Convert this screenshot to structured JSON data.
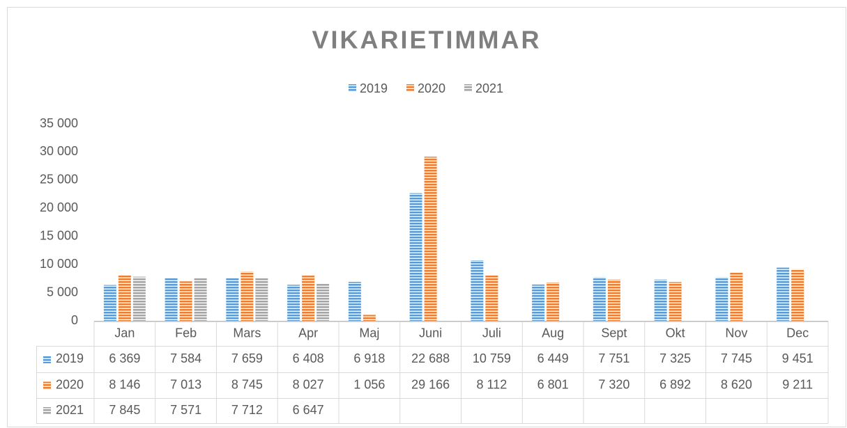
{
  "chart_data": {
    "type": "bar",
    "title": "VIKARIETIMMAR",
    "categories": [
      "Jan",
      "Feb",
      "Mars",
      "Apr",
      "Maj",
      "Juni",
      "Juli",
      "Aug",
      "Sept",
      "Okt",
      "Nov",
      "Dec"
    ],
    "series": [
      {
        "name": "2019",
        "color": "#5b9bd5",
        "values": [
          6369,
          7584,
          7659,
          6408,
          6918,
          22688,
          10759,
          6449,
          7751,
          7325,
          7745,
          9451
        ],
        "value_labels": [
          "6 369",
          "7 584",
          "7 659",
          "6 408",
          "6 918",
          "22 688",
          "10 759",
          "6 449",
          "7 751",
          "7 325",
          "7 745",
          "9 451"
        ]
      },
      {
        "name": "2020",
        "color": "#ed7d31",
        "values": [
          8146,
          7013,
          8745,
          8027,
          1056,
          29166,
          8112,
          6801,
          7320,
          6892,
          8620,
          9211
        ],
        "value_labels": [
          "8 146",
          "7 013",
          "8 745",
          "8 027",
          "1 056",
          "29 166",
          "8 112",
          "6 801",
          "7 320",
          "6 892",
          "8 620",
          "9 211"
        ]
      },
      {
        "name": "2021",
        "color": "#a5a5a5",
        "values": [
          7845,
          7571,
          7712,
          6647,
          null,
          null,
          null,
          null,
          null,
          null,
          null,
          null
        ],
        "value_labels": [
          "7 845",
          "7 571",
          "7 712",
          "6 647",
          null,
          null,
          null,
          null,
          null,
          null,
          null,
          null
        ]
      }
    ],
    "ylim": [
      0,
      35000
    ],
    "yticks": [
      0,
      {
        "value": 5000,
        "label": "5 000"
      },
      {
        "value": 10000,
        "label": "10 000"
      },
      {
        "value": 15000,
        "label": "15 000"
      },
      {
        "value": 20000,
        "label": "20 000"
      },
      {
        "value": 25000,
        "label": "25 000"
      },
      {
        "value": 30000,
        "label": "30 000"
      },
      {
        "value": 35000,
        "label": "35 000"
      }
    ],
    "grid": false,
    "legend": "top"
  }
}
